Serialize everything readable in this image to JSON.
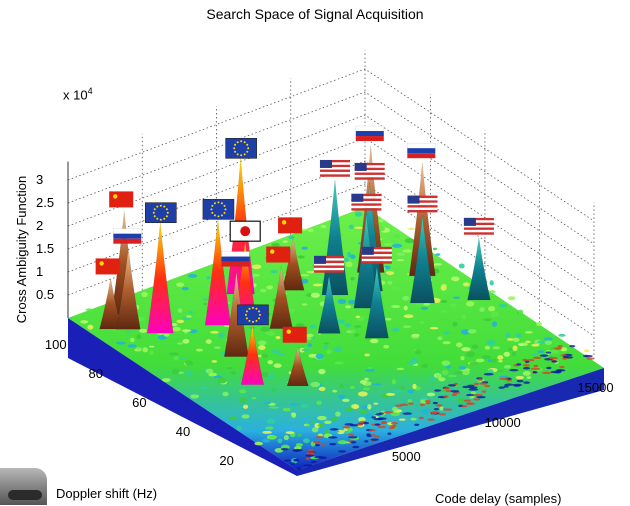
{
  "chart_data": {
    "type": "surface",
    "title": "Search Space of Signal Acquisition",
    "zlabel": "Cross Ambiguity Function",
    "xlabel": "Doppler shift (Hz)",
    "ylabel": "Code delay (samples)",
    "z_exponent_base": "x 10",
    "z_exponent": "4",
    "zticks": [
      "0.5",
      "1",
      "1.5",
      "2",
      "2.5",
      "3"
    ],
    "doppler_ticks": [
      "20",
      "40",
      "60",
      "80",
      "100"
    ],
    "delay_ticks": [
      "5000",
      "10000",
      "15000"
    ],
    "zlim": [
      0,
      3.4
    ],
    "grid": true,
    "peaks": [
      {
        "doppler": 88,
        "delay": 300,
        "z": 1.35,
        "flag": "china"
      },
      {
        "doppler": 85,
        "delay": 900,
        "z": 2.0,
        "flag": "russia"
      },
      {
        "doppler": 78,
        "delay": 1800,
        "z": 2.65,
        "flag": "eu"
      },
      {
        "doppler": 92,
        "delay": 1500,
        "z": 2.5,
        "flag": "china"
      },
      {
        "doppler": 55,
        "delay": 3200,
        "z": 2.1,
        "flag": "russia"
      },
      {
        "doppler": 40,
        "delay": 2300,
        "z": 1.55,
        "flag": "eu"
      },
      {
        "doppler": 32,
        "delay": 3800,
        "z": 1.1,
        "flag": "china"
      },
      {
        "doppler": 72,
        "delay": 4200,
        "z": 2.55,
        "flag": "eu"
      },
      {
        "doppler": 68,
        "delay": 5200,
        "z": 2.05,
        "flag": "japan"
      },
      {
        "doppler": 82,
        "delay": 6600,
        "z": 3.2,
        "flag": "eu"
      },
      {
        "doppler": 60,
        "delay": 6200,
        "z": 1.6,
        "flag": "china"
      },
      {
        "doppler": 50,
        "delay": 7600,
        "z": 1.5,
        "flag": "usa"
      },
      {
        "doppler": 40,
        "delay": 9000,
        "z": 1.8,
        "flag": "usa"
      },
      {
        "doppler": 55,
        "delay": 10200,
        "z": 2.3,
        "flag": "usa"
      },
      {
        "doppler": 62,
        "delay": 11200,
        "z": 2.6,
        "flag": "usa"
      },
      {
        "doppler": 70,
        "delay": 12200,
        "z": 3.0,
        "flag": "russia"
      },
      {
        "doppler": 48,
        "delay": 12400,
        "z": 2.15,
        "flag": "usa"
      },
      {
        "doppler": 60,
        "delay": 13800,
        "z": 2.7,
        "flag": "russia"
      },
      {
        "doppler": 40,
        "delay": 14500,
        "z": 1.6,
        "flag": "usa"
      },
      {
        "doppler": 66,
        "delay": 9800,
        "z": 2.75,
        "flag": "usa"
      },
      {
        "doppler": 75,
        "delay": 8600,
        "z": 1.4,
        "flag": "china"
      }
    ]
  }
}
